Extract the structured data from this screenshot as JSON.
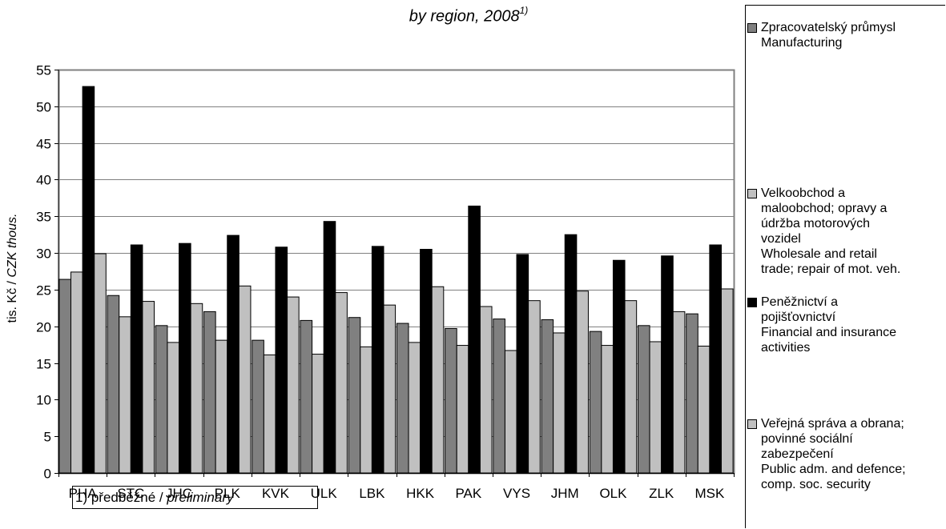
{
  "chart_data": {
    "type": "bar",
    "title": "",
    "subtitle": "by region, 2008",
    "subtitle_note_marker": "1)",
    "xlabel": "",
    "ylabel": "tis. Kč / CZK thous.",
    "ylabel_parts": {
      "regular": "tis. Kč / ",
      "italic": "CZK thous."
    },
    "ylim": [
      0,
      55
    ],
    "yticks": [
      0,
      5,
      10,
      15,
      20,
      25,
      30,
      35,
      40,
      45,
      50,
      55
    ],
    "grid": true,
    "legend_position": "right",
    "categories": [
      "PHA",
      "STC",
      "JHC",
      "PLK",
      "KVK",
      "ULK",
      "LBK",
      "HKK",
      "PAK",
      "VYS",
      "JHM",
      "OLK",
      "ZLK",
      "MSK"
    ],
    "series": [
      {
        "name": "Zpracovatelský průmysl Manufacturing",
        "legend_lines": [
          "Zpracovatelský průmysl",
          "Manufacturing"
        ],
        "color": "#808080",
        "values": [
          26.4,
          24.2,
          20.1,
          22.0,
          18.1,
          20.8,
          21.2,
          20.4,
          19.7,
          21.0,
          20.9,
          19.3,
          20.1,
          21.7
        ]
      },
      {
        "name": "Velkoobchod a maloobchod; opravy a údržba motorových vozidel Wholesale and retail trade; repair of mot. veh.",
        "legend_lines": [
          "Velkoobchod a",
          "maloobchod; opravy a",
          "údržba motorových",
          "vozidel",
          "Wholesale and retail",
          "trade; repair of mot. veh."
        ],
        "color": "#c0c0c0",
        "values": [
          27.4,
          21.3,
          17.8,
          18.1,
          16.1,
          16.2,
          17.2,
          17.8,
          17.4,
          16.7,
          19.1,
          17.4,
          17.9,
          17.3
        ]
      },
      {
        "name": "Peněžnictví a pojišťovnictví Financial and insurance activities",
        "legend_lines": [
          "Peněžnictví a",
          "pojišťovnictví",
          "Financial and insurance",
          "activities"
        ],
        "color": "#000000",
        "values": [
          52.7,
          31.1,
          31.3,
          32.4,
          30.8,
          34.3,
          30.9,
          30.5,
          36.4,
          29.8,
          32.5,
          29.0,
          29.6,
          31.1
        ]
      },
      {
        "name": "Veřejná správa a obrana; povinné sociální zabezpečení Public adm. and defence; comp. soc. security",
        "legend_lines": [
          "Veřejná správa a obrana;",
          "povinné sociální",
          "zabezpečení",
          "Public adm. and defence;",
          "comp. soc. security"
        ],
        "color": "#c0c0c0",
        "values": [
          29.9,
          23.4,
          23.1,
          25.5,
          24.0,
          24.6,
          22.9,
          25.4,
          22.7,
          23.5,
          24.8,
          23.5,
          22.0,
          25.1
        ]
      }
    ],
    "footnote": {
      "text": "1) předběžné / preliminary",
      "regular": "1) předběžné / ",
      "italic": "preliminary"
    }
  },
  "colors": {
    "plot_border": "#808080",
    "gridline": "#808080",
    "bar_outline": "#000000"
  }
}
